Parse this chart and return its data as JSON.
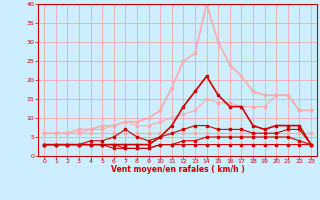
{
  "xlabel": "Vent moyen/en rafales ( km/h )",
  "background_color": "#cceeff",
  "grid_color": "#ff9999",
  "xlim": [
    -0.5,
    23.5
  ],
  "ylim": [
    0,
    40
  ],
  "yticks": [
    0,
    5,
    10,
    15,
    20,
    25,
    30,
    35,
    40
  ],
  "xticks": [
    0,
    1,
    2,
    3,
    4,
    5,
    6,
    7,
    8,
    9,
    10,
    11,
    12,
    13,
    14,
    15,
    16,
    17,
    18,
    19,
    20,
    21,
    22,
    23
  ],
  "lines": [
    {
      "x": [
        0,
        1,
        2,
        3,
        4,
        5,
        6,
        7,
        8,
        9,
        10,
        11,
        12,
        13,
        14,
        15,
        16,
        17,
        18,
        19,
        20,
        21,
        22,
        23
      ],
      "y": [
        3,
        3,
        3,
        3,
        3,
        3,
        2,
        2,
        2,
        2,
        3,
        3,
        3,
        3,
        3,
        3,
        3,
        3,
        3,
        3,
        3,
        3,
        3,
        3
      ],
      "color": "#cc0000",
      "lw": 0.8,
      "marker": "s",
      "ms": 1.5
    },
    {
      "x": [
        0,
        1,
        2,
        3,
        4,
        5,
        6,
        7,
        8,
        9,
        10,
        11,
        12,
        13,
        14,
        15,
        16,
        17,
        18,
        19,
        20,
        21,
        22,
        23
      ],
      "y": [
        6,
        6,
        6,
        6,
        6,
        6,
        6,
        6,
        6,
        6,
        6,
        6,
        6,
        6,
        6,
        6,
        6,
        6,
        6,
        6,
        6,
        6,
        6,
        6
      ],
      "color": "#ffaaaa",
      "lw": 0.8,
      "marker": "s",
      "ms": 1.5
    },
    {
      "x": [
        0,
        1,
        2,
        3,
        4,
        5,
        6,
        7,
        8,
        9,
        10,
        11,
        12,
        13,
        14,
        15,
        16,
        17,
        18,
        19,
        20,
        21,
        22,
        23
      ],
      "y": [
        3,
        3,
        3,
        3,
        3,
        3,
        3,
        2,
        2,
        2,
        3,
        3,
        4,
        4,
        5,
        5,
        5,
        5,
        5,
        5,
        5,
        5,
        4,
        3
      ],
      "color": "#cc0000",
      "lw": 0.8,
      "marker": "s",
      "ms": 1.5
    },
    {
      "x": [
        0,
        1,
        2,
        3,
        4,
        5,
        6,
        7,
        8,
        9,
        10,
        11,
        12,
        13,
        14,
        15,
        16,
        17,
        18,
        19,
        20,
        21,
        22,
        23
      ],
      "y": [
        3,
        3,
        3,
        3,
        4,
        4,
        5,
        7,
        5,
        4,
        5,
        6,
        7,
        8,
        8,
        7,
        7,
        7,
        6,
        6,
        6,
        7,
        7,
        3
      ],
      "color": "#cc0000",
      "lw": 0.8,
      "marker": "s",
      "ms": 1.5
    },
    {
      "x": [
        0,
        1,
        2,
        3,
        4,
        5,
        6,
        7,
        8,
        9,
        10,
        11,
        12,
        13,
        14,
        15,
        16,
        17,
        18,
        19,
        20,
        21,
        22,
        23
      ],
      "y": [
        6,
        6,
        6,
        6,
        7,
        7,
        8,
        9,
        8,
        8,
        9,
        10,
        11,
        12,
        15,
        14,
        14,
        13,
        13,
        13,
        16,
        16,
        12,
        12
      ],
      "color": "#ffaaaa",
      "lw": 0.8,
      "marker": "s",
      "ms": 1.5
    },
    {
      "x": [
        0,
        1,
        2,
        3,
        4,
        5,
        6,
        7,
        8,
        9,
        10,
        11,
        12,
        13,
        14,
        15,
        16,
        17,
        18,
        19,
        20,
        21,
        22,
        23
      ],
      "y": [
        3,
        3,
        3,
        3,
        3,
        3,
        3,
        3,
        3,
        3,
        5,
        8,
        13,
        17,
        21,
        16,
        13,
        13,
        8,
        7,
        8,
        8,
        8,
        3
      ],
      "color": "#cc0000",
      "lw": 1.2,
      "marker": "s",
      "ms": 2.0
    },
    {
      "x": [
        0,
        1,
        2,
        3,
        4,
        5,
        6,
        7,
        8,
        9,
        10,
        11,
        12,
        13,
        14,
        15,
        16,
        17,
        18,
        19,
        20,
        21,
        22,
        23
      ],
      "y": [
        6,
        6,
        6,
        7,
        7,
        8,
        8,
        9,
        9,
        10,
        12,
        18,
        25,
        27,
        40,
        30,
        24,
        21,
        17,
        16,
        16,
        16,
        12,
        12
      ],
      "color": "#ffaaaa",
      "lw": 1.2,
      "marker": "s",
      "ms": 2.0
    }
  ]
}
